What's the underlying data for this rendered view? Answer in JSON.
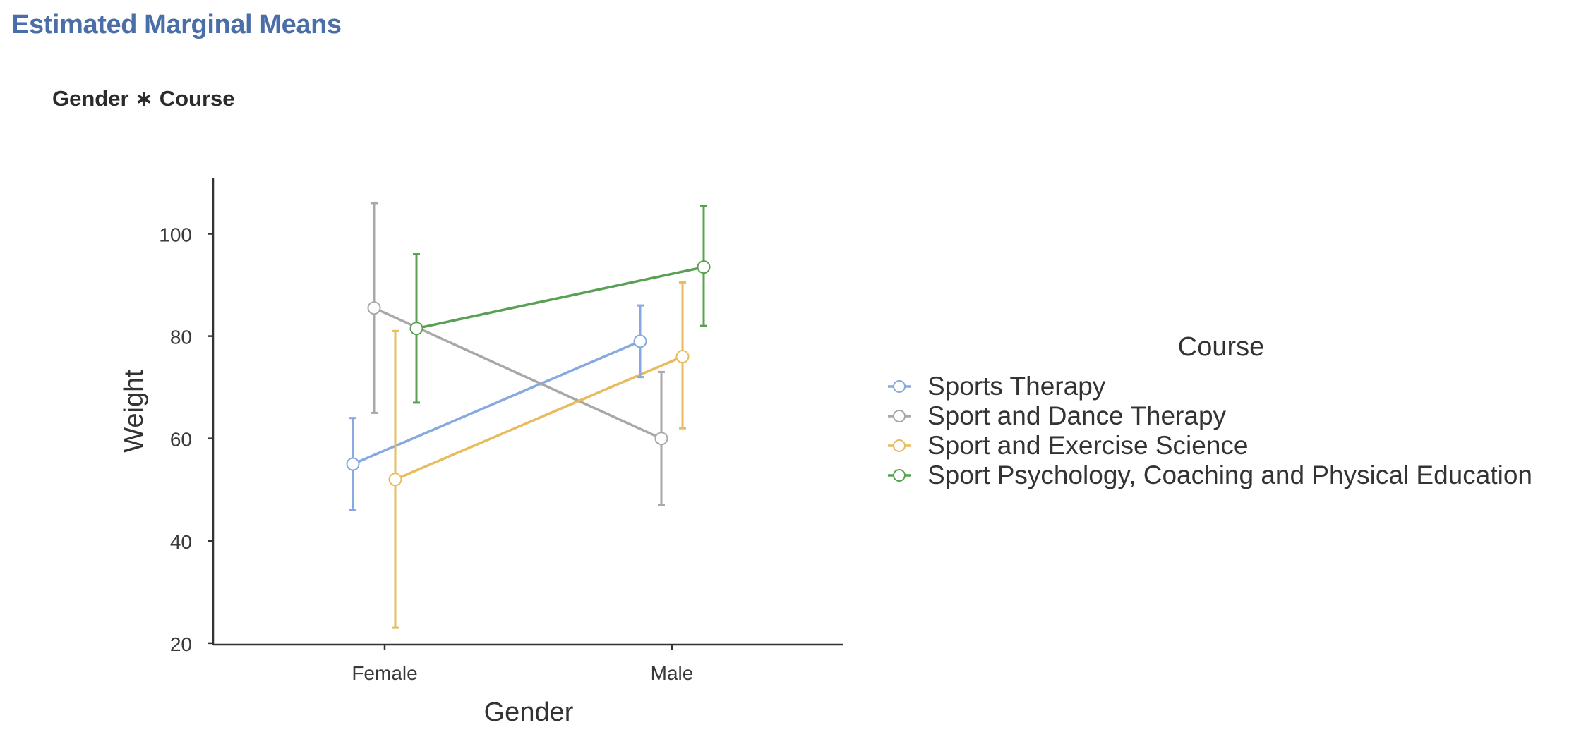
{
  "header": {
    "title": "Estimated Marginal Means",
    "title_color": "#4a6ea8",
    "subtitle": "Gender ∗ Course"
  },
  "chart_data": {
    "type": "line",
    "title": "",
    "xlabel": "Gender",
    "ylabel": "Weight",
    "categories": [
      "Female",
      "Male"
    ],
    "ylim": [
      20,
      110
    ],
    "yticks": [
      20,
      40,
      60,
      80,
      100
    ],
    "grid": false,
    "error_bars": true,
    "legend": {
      "title": "Course",
      "position": "right"
    },
    "series": [
      {
        "name": "Sports Therapy",
        "color": "#86a9e2",
        "values": [
          55.0,
          79.0
        ],
        "lower": [
          46.0,
          72.0
        ],
        "upper": [
          64.0,
          86.0
        ]
      },
      {
        "name": "Sport and Dance Therapy",
        "color": "#a8a8a8",
        "values": [
          85.5,
          60.0
        ],
        "lower": [
          65.0,
          47.0
        ],
        "upper": [
          106.0,
          73.0
        ]
      },
      {
        "name": "Sport and Exercise Science",
        "color": "#e8bb5e",
        "values": [
          52.0,
          76.0
        ],
        "lower": [
          23.0,
          62.0
        ],
        "upper": [
          81.0,
          90.5
        ]
      },
      {
        "name": "Sport Psychology, Coaching and Physical Education",
        "color": "#5aa052",
        "values": [
          81.5,
          93.5
        ],
        "lower": [
          67.0,
          82.0
        ],
        "upper": [
          96.0,
          105.5
        ]
      }
    ]
  }
}
